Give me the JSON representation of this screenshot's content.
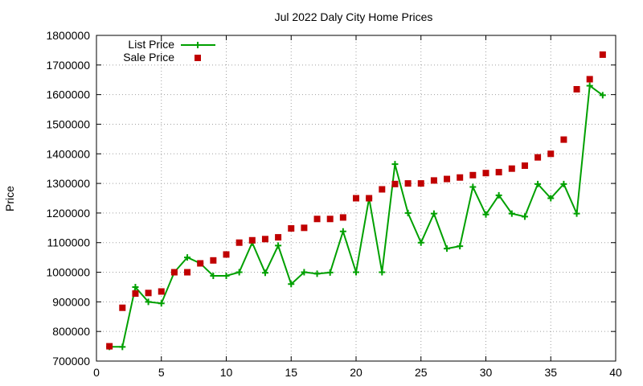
{
  "chart_data": {
    "type": "line",
    "title": "Jul 2022 Daly City Home Prices",
    "xlabel": "",
    "ylabel": "Price",
    "xlim": [
      0,
      40
    ],
    "ylim": [
      700000,
      1800000
    ],
    "xticks": [
      0,
      5,
      10,
      15,
      20,
      25,
      30,
      35,
      40
    ],
    "yticks": [
      700000,
      800000,
      900000,
      1000000,
      1100000,
      1200000,
      1300000,
      1400000,
      1500000,
      1600000,
      1700000,
      1800000
    ],
    "grid": true,
    "legend": "top-left",
    "x": [
      1,
      2,
      3,
      4,
      5,
      6,
      7,
      8,
      9,
      10,
      11,
      12,
      13,
      14,
      15,
      16,
      17,
      18,
      19,
      20,
      21,
      22,
      23,
      24,
      25,
      26,
      27,
      28,
      29,
      30,
      31,
      32,
      33,
      34,
      35,
      36,
      37,
      38,
      39
    ],
    "series": [
      {
        "name": "List Price",
        "style": "linespoints",
        "color": "#00a000",
        "marker": "plus",
        "values": [
          748000,
          748000,
          950000,
          900000,
          895000,
          1000000,
          1050000,
          1030000,
          988000,
          988000,
          1000000,
          1100000,
          998000,
          1090000,
          960000,
          1000000,
          995000,
          999000,
          1138000,
          1000000,
          1250000,
          1000000,
          1365000,
          1200000,
          1100000,
          1198000,
          1080000,
          1088000,
          1288000,
          1195000,
          1260000,
          1198000,
          1188000,
          1298000,
          1250000,
          1298000,
          1198000,
          1630000,
          1598000
        ]
      },
      {
        "name": "Sale Price",
        "style": "points",
        "color": "#c00000",
        "marker": "square",
        "values": [
          750000,
          880000,
          928000,
          930000,
          935000,
          1000000,
          1000000,
          1030000,
          1040000,
          1060000,
          1100000,
          1108000,
          1112000,
          1118000,
          1148000,
          1150000,
          1180000,
          1180000,
          1185000,
          1250000,
          1250000,
          1280000,
          1298000,
          1300000,
          1300000,
          1310000,
          1315000,
          1320000,
          1328000,
          1335000,
          1338000,
          1350000,
          1360000,
          1388000,
          1400000,
          1448000,
          1618000,
          1652000,
          1735000
        ]
      }
    ]
  }
}
